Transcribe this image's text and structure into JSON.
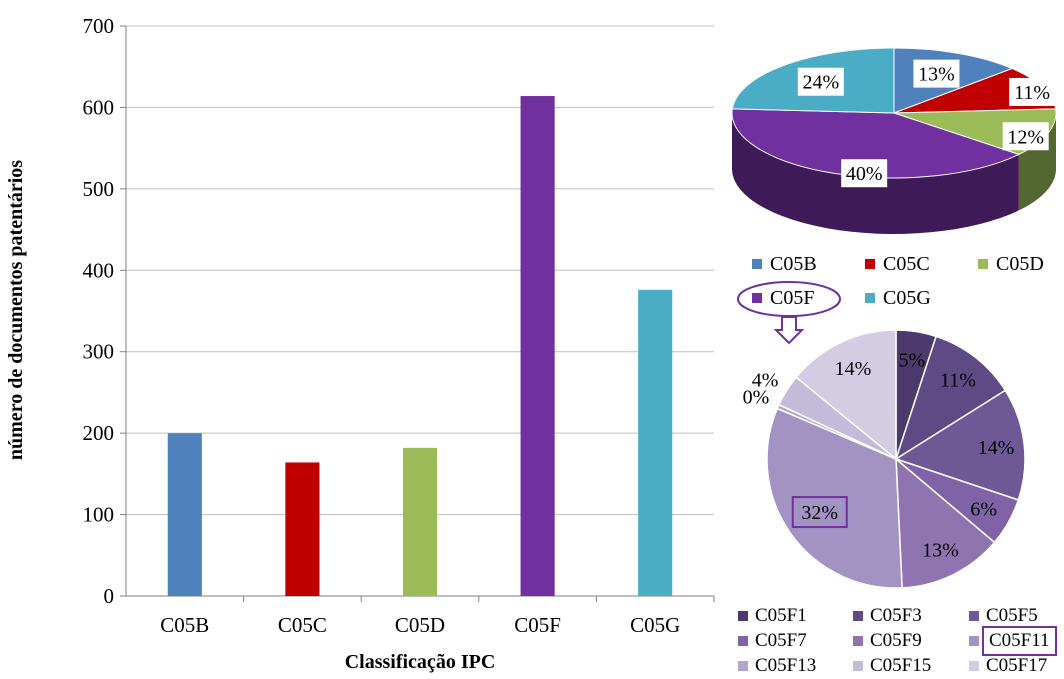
{
  "chart_data": [
    {
      "type": "bar",
      "title": "",
      "xlabel": "Classificação IPC",
      "ylabel": "número de documentos patentários",
      "categories": [
        "C05B",
        "C05C",
        "C05D",
        "C05F",
        "C05G"
      ],
      "values": [
        200,
        164,
        182,
        614,
        376
      ],
      "colors": [
        "#4f81bd",
        "#c00000",
        "#9bbb59",
        "#7030a0",
        "#4bacc6"
      ],
      "ylim": [
        0,
        700
      ],
      "yticks": [
        0,
        100,
        200,
        300,
        400,
        500,
        600,
        700
      ],
      "grid": true,
      "legend": "none"
    },
    {
      "type": "pie",
      "style": "3d",
      "legend": "bottom",
      "labels": [
        "C05B",
        "C05C",
        "C05D",
        "C05F",
        "C05G"
      ],
      "values": [
        13,
        11,
        12,
        40,
        24
      ],
      "value_labels": [
        "13%",
        "11%",
        "12%",
        "40%",
        "24%"
      ],
      "colors": [
        "#4f81bd",
        "#c00000",
        "#9bbb59",
        "#7030a0",
        "#4bacc6"
      ],
      "highlighted": "C05F"
    },
    {
      "type": "pie",
      "legend": "bottom",
      "labels": [
        "C05F1",
        "C05F3",
        "C05F5",
        "C05F7",
        "C05F9",
        "C05F11",
        "C05F13",
        "C05F15",
        "C05F17"
      ],
      "values": [
        5,
        11,
        14,
        6,
        13,
        32,
        0.5,
        4,
        14
      ],
      "value_labels": [
        "5%",
        "11%",
        "14%",
        "6%",
        "13%",
        "32%",
        "0%",
        "4%",
        "14%"
      ],
      "colors": [
        "#4b3a6b",
        "#5e4a85",
        "#6f5896",
        "#8063a6",
        "#8f74b0",
        "#a293c2",
        "#b1a5cc",
        "#c4bad9",
        "#d3cce3"
      ],
      "highlighted": "C05F11"
    }
  ]
}
